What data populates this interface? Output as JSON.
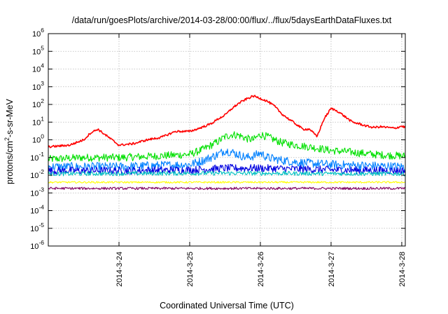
{
  "chart_data": {
    "type": "line",
    "title": "/data/run/goesPlots/archive/2014-03-28/00:00/flux/../flux/5daysEarthDataFluxes.txt",
    "xlabel": "Coordinated Universal Time (UTC)",
    "ylabel_parts": {
      "pre": "protons/cm",
      "sup": "2",
      "post": "-s-sr-MeV"
    },
    "yscale": "log",
    "ylim": [
      1e-06,
      1000000.0
    ],
    "x_start": "2014-3-23 00:00",
    "x_end": "2014-3-28 00:00",
    "xlim_days": [
      0,
      5.05
    ],
    "grid": true,
    "legend": "none",
    "xticks": [
      {
        "label": "2014-3-24",
        "day": 1
      },
      {
        "label": "2014-3-25",
        "day": 2
      },
      {
        "label": "2014-3-26",
        "day": 3
      },
      {
        "label": "2014-3-27",
        "day": 4
      },
      {
        "label": "2014-3-28",
        "day": 5
      }
    ],
    "yticks": [
      {
        "base": "10",
        "exp": "-6",
        "value": 1e-06
      },
      {
        "base": "10",
        "exp": "-5",
        "value": 1e-05
      },
      {
        "base": "10",
        "exp": "-4",
        "value": 0.0001
      },
      {
        "base": "10",
        "exp": "-3",
        "value": 0.001
      },
      {
        "base": "10",
        "exp": "-2",
        "value": 0.01
      },
      {
        "base": "10",
        "exp": "-1",
        "value": 0.1
      },
      {
        "base": "10",
        "exp": "0",
        "value": 1
      },
      {
        "base": "10",
        "exp": "1",
        "value": 10
      },
      {
        "base": "10",
        "exp": "2",
        "value": 100
      },
      {
        "base": "10",
        "exp": "3",
        "value": 1000
      },
      {
        "base": "10",
        "exp": "4",
        "value": 10000
      },
      {
        "base": "10",
        "exp": "5",
        "value": 100000
      },
      {
        "base": "10",
        "exp": "6",
        "value": 1000000
      }
    ],
    "series": [
      {
        "color": "#ff0000",
        "noise": 0.06,
        "x": [
          0,
          0.3,
          0.5,
          0.6,
          0.7,
          0.8,
          0.9,
          1.0,
          1.2,
          1.4,
          1.6,
          1.8,
          2.0,
          2.1,
          2.3,
          2.4,
          2.5,
          2.6,
          2.7,
          2.8,
          2.9,
          3.0,
          3.1,
          3.2,
          3.3,
          3.4,
          3.5,
          3.6,
          3.7,
          3.8,
          3.9,
          4.0,
          4.1,
          4.2,
          4.3,
          4.4,
          4.5,
          4.6,
          4.7,
          4.8,
          4.9,
          5.0,
          5.05
        ],
        "y": [
          0.4,
          0.5,
          1.0,
          2.5,
          4.0,
          2.0,
          1.0,
          0.5,
          0.6,
          1.0,
          1.4,
          3.0,
          3.0,
          4.0,
          8.0,
          15,
          25,
          60,
          120,
          200,
          300,
          220,
          150,
          80,
          30,
          15,
          8,
          4,
          4,
          1.5,
          15,
          60,
          40,
          20,
          10,
          8,
          6,
          5,
          5.5,
          5,
          4.5,
          6,
          5
        ]
      },
      {
        "color": "#00e000",
        "noise": 0.22,
        "x": [
          0,
          0.5,
          1.0,
          1.5,
          2.0,
          2.2,
          2.4,
          2.5,
          2.6,
          2.7,
          2.8,
          2.9,
          3.0,
          3.1,
          3.2,
          3.3,
          3.5,
          3.7,
          4.0,
          4.3,
          4.6,
          5.05
        ],
        "y": [
          0.08,
          0.1,
          0.1,
          0.12,
          0.15,
          0.3,
          0.8,
          1.5,
          2.0,
          1.8,
          1.2,
          1.0,
          2.0,
          1.5,
          1.0,
          0.7,
          0.5,
          0.4,
          0.25,
          0.2,
          0.15,
          0.12
        ]
      },
      {
        "color": "#0080ff",
        "noise": 0.25,
        "x": [
          0,
          0.5,
          1.0,
          1.5,
          2.0,
          2.2,
          2.4,
          2.5,
          2.6,
          2.8,
          2.9,
          3.0,
          3.1,
          3.3,
          3.6,
          4.0,
          4.5,
          5.05
        ],
        "y": [
          0.03,
          0.03,
          0.03,
          0.035,
          0.04,
          0.07,
          0.15,
          0.25,
          0.2,
          0.1,
          0.12,
          0.18,
          0.1,
          0.07,
          0.05,
          0.04,
          0.035,
          0.03
        ]
      },
      {
        "color": "#0000e0",
        "noise": 0.22,
        "x": [
          0,
          1.0,
          2.0,
          2.5,
          3.0,
          4.0,
          5.05
        ],
        "y": [
          0.018,
          0.018,
          0.02,
          0.025,
          0.025,
          0.02,
          0.018
        ]
      },
      {
        "color": "#00c0c0",
        "noise": 0.12,
        "x": [
          0,
          2.5,
          5.05
        ],
        "y": [
          0.012,
          0.013,
          0.012
        ]
      },
      {
        "color": "#ffff00",
        "noise": 0.05,
        "x": [
          0,
          5.05
        ],
        "y": [
          0.004,
          0.004
        ]
      },
      {
        "color": "#800060",
        "noise": 0.07,
        "x": [
          0,
          5.05
        ],
        "y": [
          0.0018,
          0.0018
        ]
      }
    ]
  }
}
